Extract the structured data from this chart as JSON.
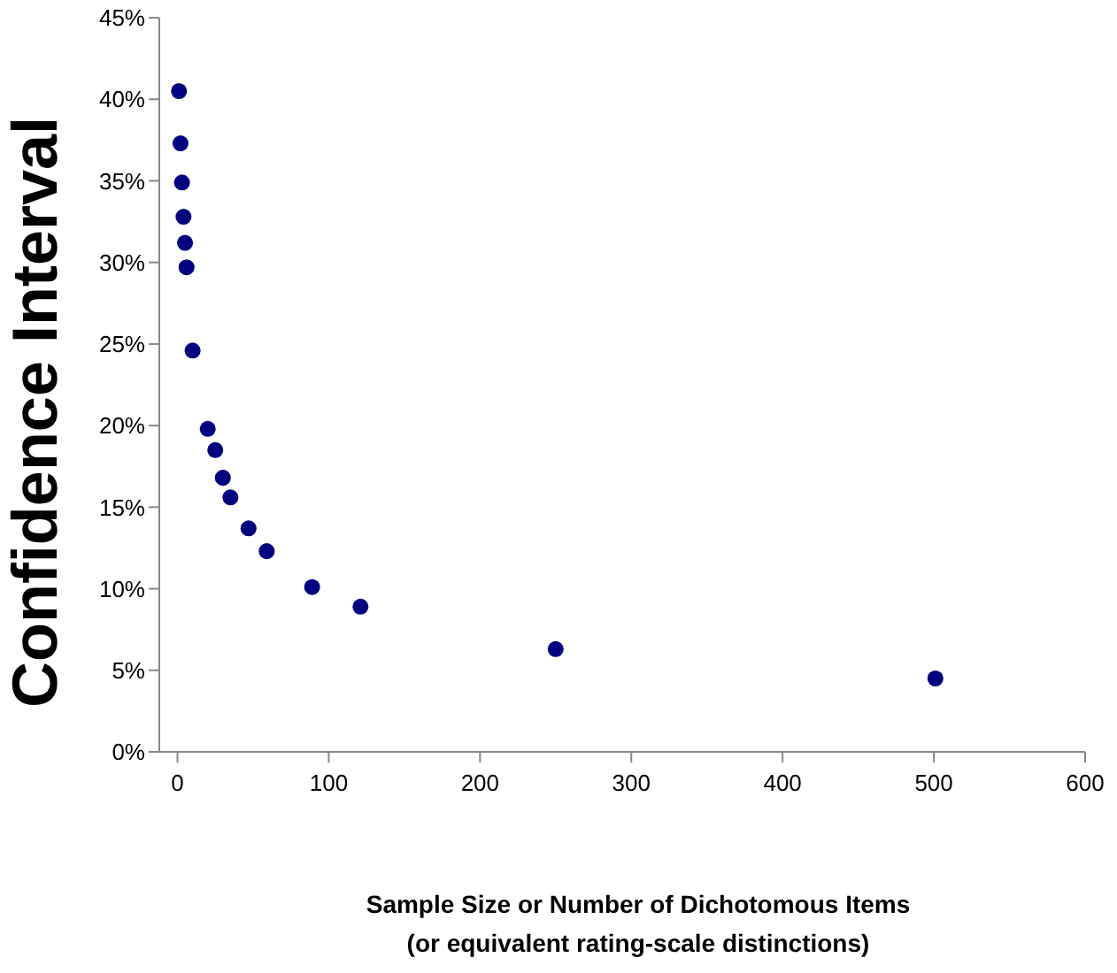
{
  "chart_data": {
    "type": "scatter",
    "xlabel": "Sample Size or Number of Dichotomous Items\n(or equivalent rating-scale distinctions)",
    "ylabel": "Confidence Interval",
    "x": [
      1,
      2,
      3,
      4,
      5,
      6,
      10,
      20,
      25,
      30,
      35,
      47,
      59,
      89,
      121,
      250,
      501
    ],
    "series": [
      {
        "color": "#000080",
        "values": [
          40.5,
          37.3,
          34.9,
          32.8,
          31.2,
          29.7,
          24.6,
          19.8,
          18.5,
          16.8,
          15.6,
          13.7,
          12.3,
          10.1,
          8.9,
          6.3,
          4.5
        ]
      }
    ],
    "marker": "circle",
    "grid": false,
    "xlim": [
      -12,
      600
    ],
    "xticks": [
      0,
      100,
      200,
      300,
      400,
      500,
      600
    ],
    "ylim": [
      0,
      45
    ],
    "yticks": [
      {
        "value": 0,
        "label": "0%"
      },
      {
        "value": 5,
        "label": "5%"
      },
      {
        "value": 10,
        "label": "10%"
      },
      {
        "value": 15,
        "label": "15%"
      },
      {
        "value": 20,
        "label": "20%"
      },
      {
        "value": 25,
        "label": "25%"
      },
      {
        "value": 30,
        "label": "30%"
      },
      {
        "value": 35,
        "label": "35%"
      },
      {
        "value": 40,
        "label": "40%"
      },
      {
        "value": 45,
        "label": "45%"
      }
    ]
  }
}
